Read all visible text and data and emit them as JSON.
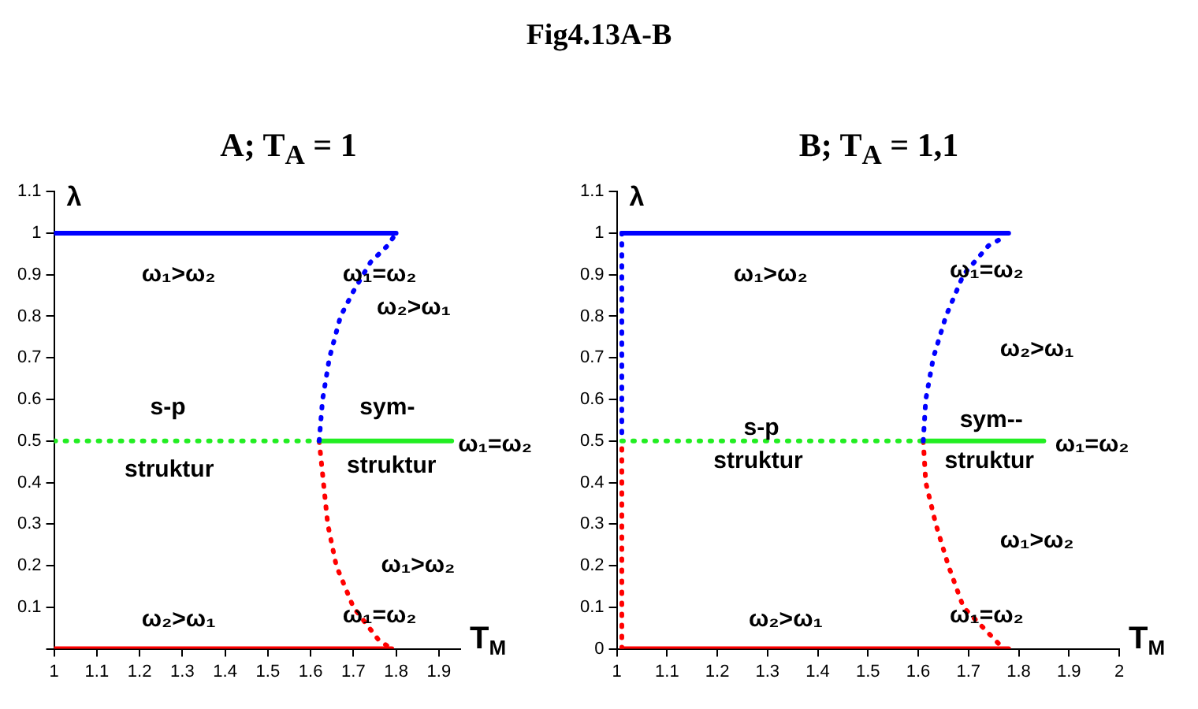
{
  "chart_data": [
    {
      "type": "line",
      "title": "A; T$_{A}$ = 1",
      "xlabel": "T$_{M}$",
      "ylabel": "λ",
      "xlim": [
        1,
        1.95
      ],
      "xticks": [
        1,
        1.1,
        1.2,
        1.3,
        1.4,
        1.5,
        1.6,
        1.7,
        1.8,
        1.9
      ],
      "ylim": [
        0,
        1.1
      ],
      "yticks": [
        {
          "value": 0,
          "label": null
        },
        0.1,
        0.2,
        0.3,
        0.4,
        0.5,
        0.6,
        0.7,
        0.8,
        0.9,
        1,
        1.1
      ],
      "grid": false,
      "legend": false,
      "marker": "none",
      "annotations": [
        "Fig4.13A-B",
        "ω₁>ω₂",
        "ω₁=ω₂",
        "ω₂>ω₁",
        "s-p",
        "sym-",
        "ω₁=ω₂",
        "struktur",
        "struktur",
        "ω₁>ω₂",
        "ω₂>ω₁",
        "ω₁=ω₂"
      ],
      "series": [
        {
          "type": "line",
          "color": "#0000ff",
          "line_style": "solid",
          "x": [
            1,
            1.8
          ],
          "values": [
            1,
            1
          ]
        },
        {
          "type": "line",
          "color": "#0000ff",
          "line_style": "dotted",
          "x": [
            1.62,
            1.628,
            1.644,
            1.67,
            1.7,
            1.74,
            1.78,
            1.8
          ],
          "values": [
            0.5,
            0.6,
            0.7,
            0.8,
            0.86,
            0.93,
            0.97,
            1
          ]
        },
        {
          "type": "line",
          "color": "#22ee22",
          "line_style": "dotted",
          "x": [
            1,
            1.62
          ],
          "values": [
            0.5,
            0.5
          ]
        },
        {
          "type": "line",
          "color": "#22ee22",
          "line_style": "solid",
          "x": [
            1.62,
            1.93
          ],
          "values": [
            0.5,
            0.5
          ]
        },
        {
          "type": "line",
          "color": "#ff0000",
          "line_style": "dotted",
          "x": [
            1.62,
            1.63,
            1.64,
            1.66,
            1.7,
            1.76,
            1.79
          ],
          "values": [
            0.5,
            0.4,
            0.3,
            0.2,
            0.1,
            0.02,
            0
          ]
        },
        {
          "type": "line",
          "color": "#ff0000",
          "line_style": "solid",
          "x": [
            1,
            1.79
          ],
          "values": [
            0,
            0
          ]
        }
      ]
    },
    {
      "type": "line",
      "title": "B; T$_{A}$ = 1,1",
      "xlabel": "T$_{M}$",
      "ylabel": "λ",
      "xlim": [
        1,
        2
      ],
      "xticks": [
        1,
        1.1,
        1.2,
        1.3,
        1.4,
        1.5,
        1.6,
        1.7,
        1.8,
        1.9,
        2
      ],
      "ylim": [
        0,
        1.1
      ],
      "yticks": [
        0,
        0.1,
        0.2,
        0.3,
        0.4,
        0.5,
        0.6,
        0.7,
        0.8,
        0.9,
        1,
        1.1
      ],
      "grid": false,
      "legend": false,
      "marker": "none",
      "annotations": [
        "ω₁>ω₂",
        "ω₁=ω₂",
        "ω₂>ω₁",
        "s-p",
        "sym--",
        "ω₁=ω₂",
        "struktur",
        "struktur",
        "ω₁>ω₂",
        "ω₂>ω₁",
        "ω₁=ω₂"
      ],
      "series": [
        {
          "type": "line",
          "color": "#0000ff",
          "line_style": "solid",
          "x": [
            1.01,
            1.78
          ],
          "values": [
            1,
            1
          ]
        },
        {
          "type": "line",
          "color": "#0000ff",
          "line_style": "dotted",
          "x": [
            1.01,
            1.01
          ],
          "values": [
            0.52,
            1
          ]
        },
        {
          "type": "line",
          "color": "#ff0000",
          "line_style": "dotted",
          "x": [
            1.01,
            1.01
          ],
          "values": [
            0,
            0.5
          ]
        },
        {
          "type": "line",
          "color": "#0000ff",
          "line_style": "dotted",
          "x": [
            1.61,
            1.615,
            1.63,
            1.655,
            1.69,
            1.74,
            1.77
          ],
          "values": [
            0.5,
            0.6,
            0.7,
            0.8,
            0.9,
            0.97,
            0.99
          ]
        },
        {
          "type": "line",
          "color": "#22ee22",
          "line_style": "dotted",
          "x": [
            1.01,
            1.61
          ],
          "values": [
            0.5,
            0.5
          ]
        },
        {
          "type": "line",
          "color": "#22ee22",
          "line_style": "solid",
          "x": [
            1.61,
            1.85
          ],
          "values": [
            0.5,
            0.5
          ]
        },
        {
          "type": "line",
          "color": "#ff0000",
          "line_style": "dotted",
          "x": [
            1.61,
            1.615,
            1.635,
            1.66,
            1.69,
            1.73,
            1.77
          ],
          "values": [
            0.5,
            0.4,
            0.3,
            0.2,
            0.1,
            0.05,
            0
          ]
        },
        {
          "type": "line",
          "color": "#ff0000",
          "line_style": "solid",
          "x": [
            1.01,
            1.78
          ],
          "values": [
            0,
            0
          ]
        }
      ]
    }
  ]
}
